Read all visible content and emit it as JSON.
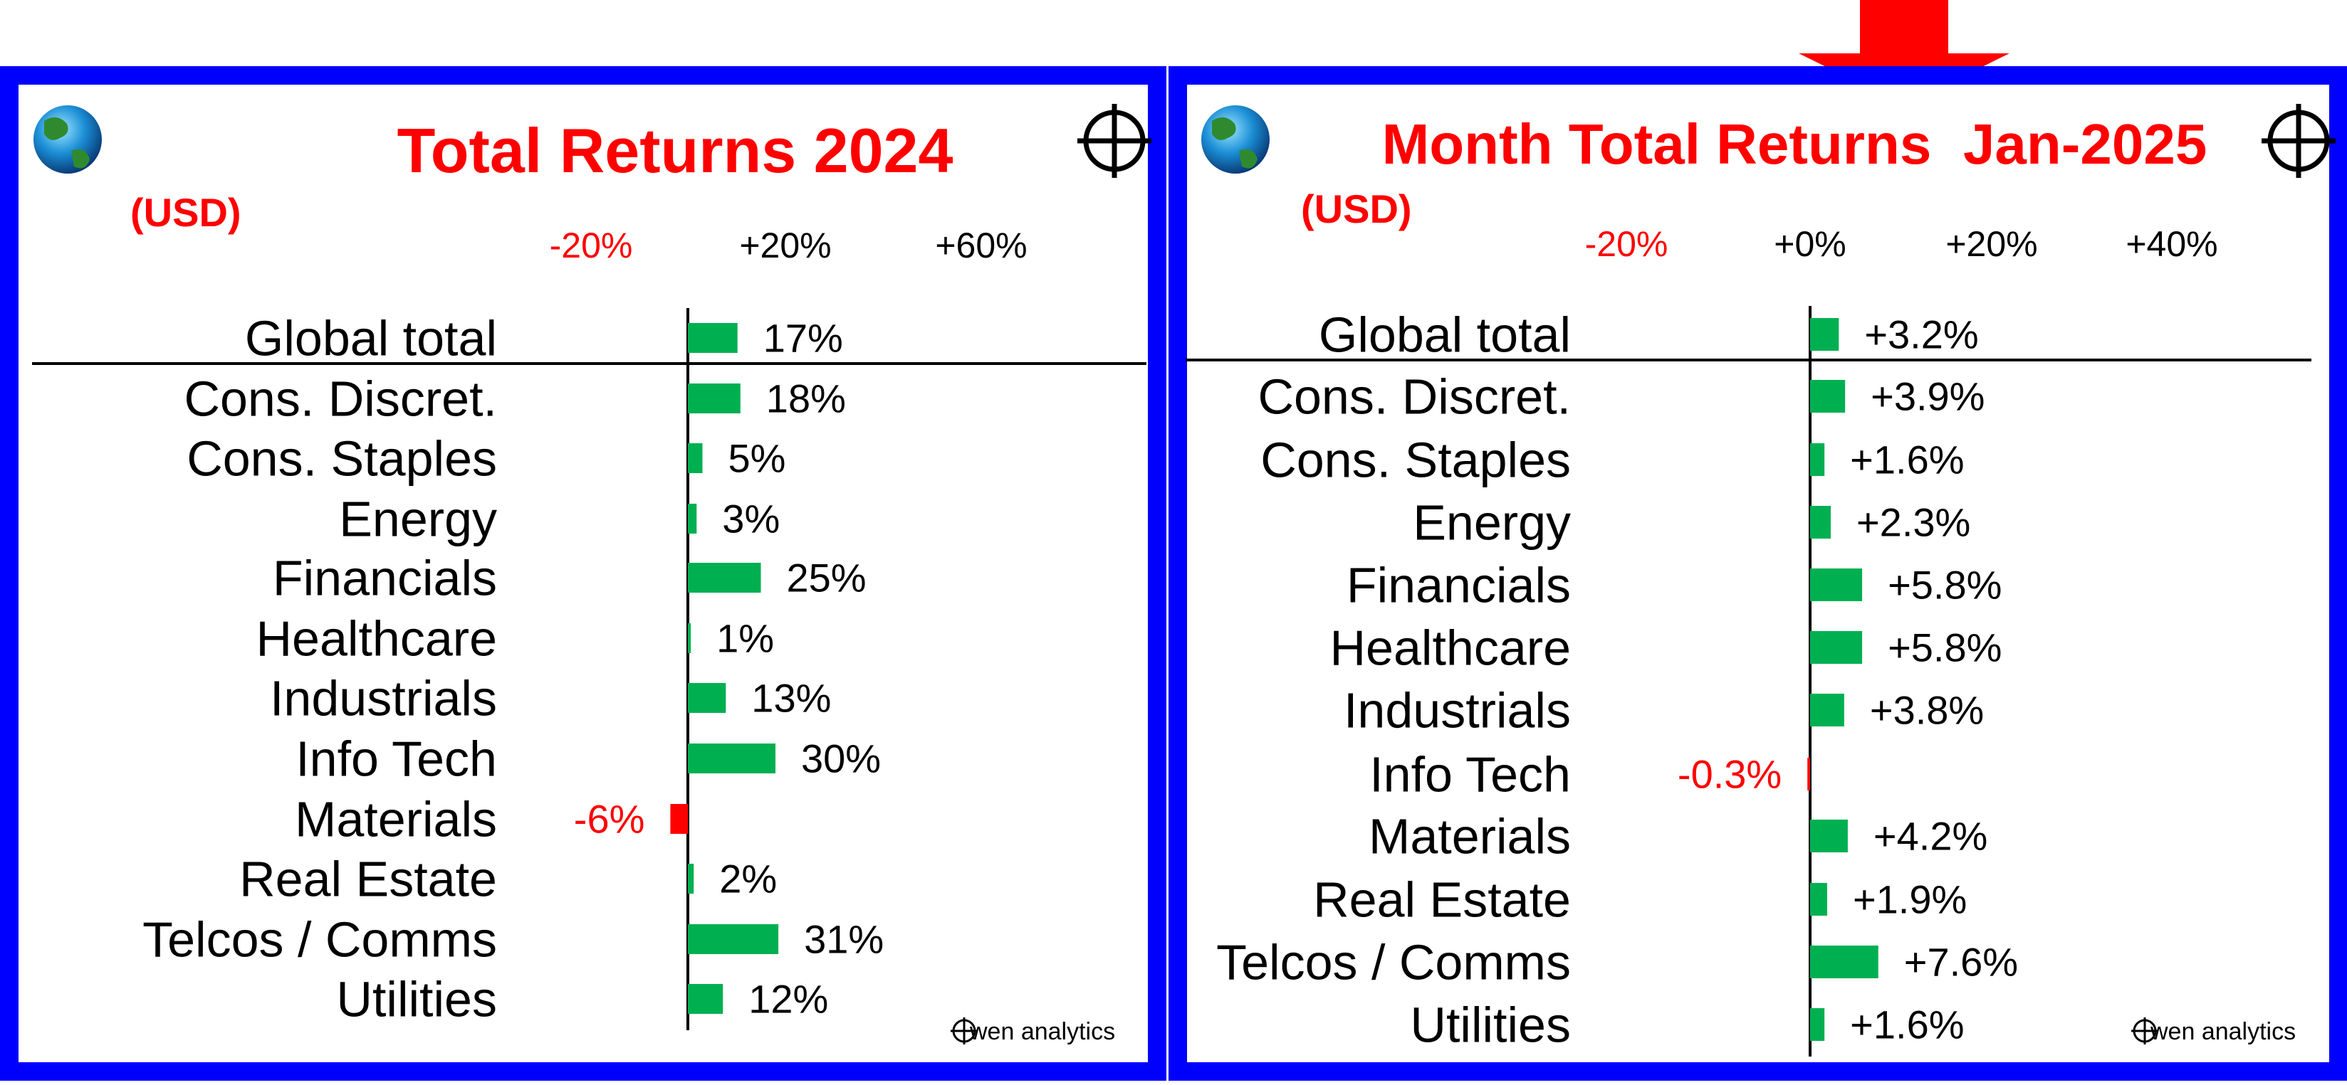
{
  "colors": {
    "frame": "#0000ff",
    "positive": "#00b050",
    "negative": "#ff0000",
    "title": "#ff0000",
    "arrow": "#ff0000"
  },
  "icons": [
    "globe-icon",
    "crosshair-icon",
    "down-arrow-icon"
  ],
  "brand": "wen analytics",
  "chart_data": [
    {
      "type": "bar",
      "orientation": "horizontal",
      "title": "Total Returns 2024",
      "subtitle": "(USD)",
      "xticks": [
        "-20%",
        "+20%",
        "+60%"
      ],
      "categories": [
        "Global total",
        "Cons. Discret.",
        "Cons. Staples",
        "Energy",
        "Financials",
        "Healthcare",
        "Industrials",
        "Info Tech",
        "Materials",
        "Real Estate",
        "Telcos / Comms",
        "Utilities"
      ],
      "values": [
        17,
        18,
        5,
        3,
        25,
        1,
        13,
        30,
        -6,
        2,
        31,
        12
      ],
      "labels": [
        "17%",
        "18%",
        "5%",
        "3%",
        "25%",
        "1%",
        "13%",
        "30%",
        "-6%",
        "2%",
        "31%",
        "12%"
      ]
    },
    {
      "type": "bar",
      "orientation": "horizontal",
      "title": "Month Total Returns  Jan-2025",
      "subtitle": "(USD)",
      "xticks": [
        "-20%",
        "+0%",
        "+20%",
        "+40%"
      ],
      "categories": [
        "Global total",
        "Cons. Discret.",
        "Cons. Staples",
        "Energy",
        "Financials",
        "Healthcare",
        "Industrials",
        "Info Tech",
        "Materials",
        "Real Estate",
        "Telcos / Comms",
        "Utilities"
      ],
      "values": [
        3.2,
        3.9,
        1.6,
        2.3,
        5.8,
        5.8,
        3.8,
        -0.3,
        4.2,
        1.9,
        7.6,
        1.6
      ],
      "labels": [
        "+3.2%",
        "+3.9%",
        "+1.6%",
        "+2.3%",
        "+5.8%",
        "+5.8%",
        "+3.8%",
        "-0.3%",
        "+4.2%",
        "+1.9%",
        "+7.6%",
        "+1.6%"
      ]
    }
  ]
}
